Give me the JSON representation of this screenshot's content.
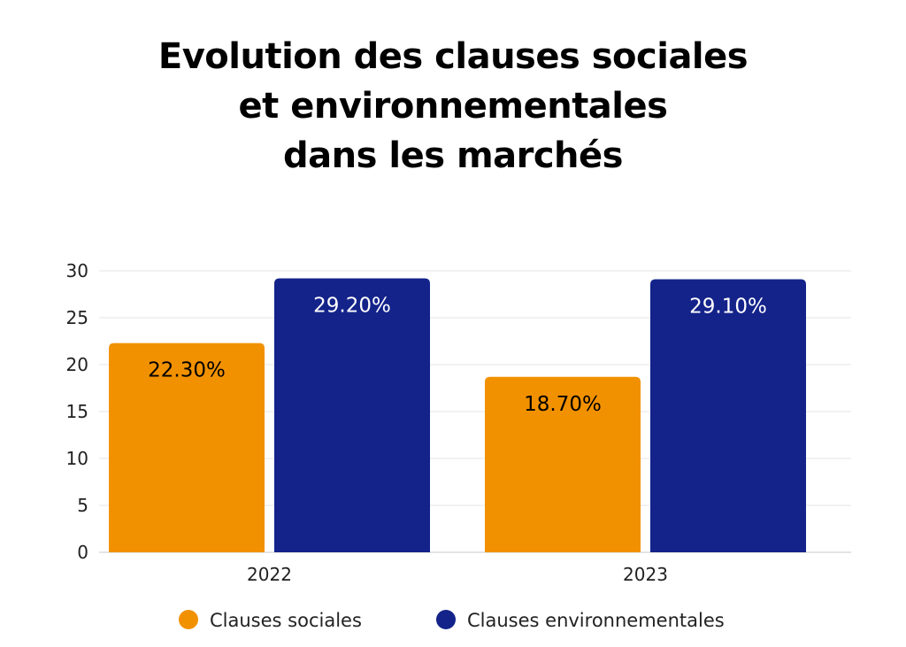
{
  "chart_data": {
    "type": "bar",
    "title_lines": [
      "Evolution des clauses sociales",
      "et environnementales",
      "dans les marchés"
    ],
    "categories": [
      "2022",
      "2023"
    ],
    "series": [
      {
        "name": "Clauses sociales",
        "color": "#F29100",
        "label_color": "#000000",
        "values": [
          22.3,
          18.7
        ],
        "labels": [
          "22.30%",
          "18.70%"
        ]
      },
      {
        "name": "Clauses environnementales",
        "color": "#14238A",
        "label_color": "#ffffff",
        "values": [
          29.2,
          29.1
        ],
        "labels": [
          "29.20%",
          "29.10%"
        ]
      }
    ],
    "y_ticks": [
      0,
      5,
      10,
      15,
      20,
      25,
      30
    ],
    "ylim": [
      0,
      30
    ],
    "grid": true,
    "legend_position": "bottom"
  }
}
